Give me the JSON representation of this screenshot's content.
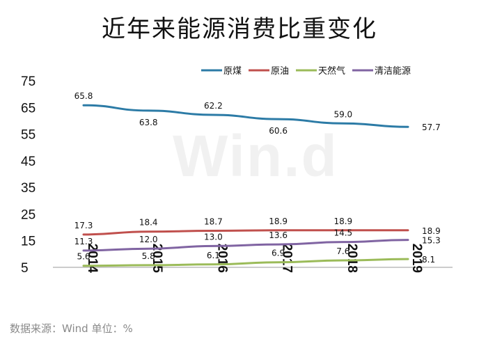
{
  "title": "近年来能源消费比重变化",
  "source_note": "数据来源：Wind   单位：%",
  "watermark": "Win.d",
  "chart_data": {
    "type": "line",
    "title": "近年来能源消费比重变化",
    "xlabel": "",
    "ylabel": "",
    "ylim": [
      5,
      75
    ],
    "yticks": [
      5,
      15,
      25,
      35,
      45,
      55,
      65,
      75
    ],
    "grid": false,
    "legend_position": "top-right",
    "x": [
      "2014",
      "2015",
      "2016",
      "2017",
      "2018",
      "2019"
    ],
    "series": [
      {
        "name": "原煤",
        "color": "#2c7ba6",
        "values": [
          65.8,
          63.8,
          62.2,
          60.6,
          59.0,
          57.7
        ],
        "label_side": [
          "above",
          "below",
          "above",
          "below",
          "above",
          "right"
        ]
      },
      {
        "name": "原油",
        "color": "#c0504d",
        "values": [
          17.3,
          18.4,
          18.7,
          18.9,
          18.9,
          18.9
        ],
        "label_side": [
          "above",
          "above",
          "above",
          "above",
          "above",
          "right"
        ]
      },
      {
        "name": "天然气",
        "color": "#9bbb59",
        "values": [
          5.6,
          5.8,
          6.1,
          6.9,
          7.6,
          8.1
        ],
        "label_side": [
          "above",
          "above",
          "above",
          "above",
          "above",
          "right"
        ]
      },
      {
        "name": "清洁能源",
        "color": "#8064a2",
        "values": [
          11.3,
          12.0,
          13.0,
          13.6,
          14.5,
          15.3
        ],
        "label_side": [
          "above",
          "above",
          "above",
          "above",
          "above",
          "right"
        ]
      }
    ]
  }
}
